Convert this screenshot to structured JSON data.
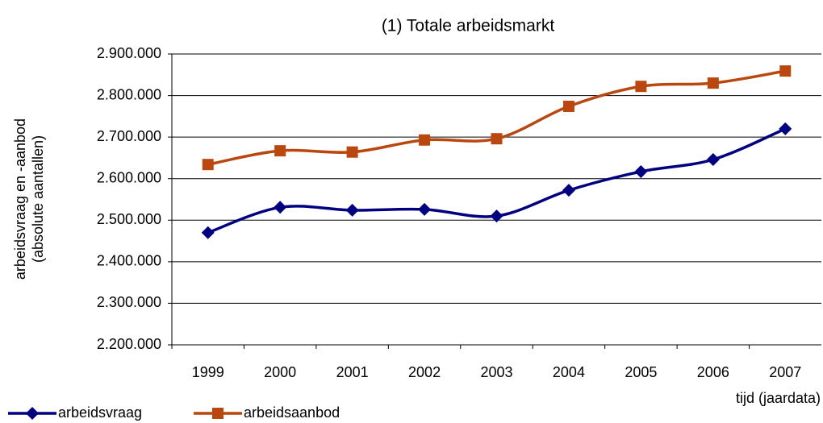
{
  "chart_data": {
    "type": "line",
    "title": "(1) Totale arbeidsmarkt",
    "ylabel": [
      "arbeidsvraag en -aanbod",
      "(absolute aantallen)"
    ],
    "xlabel": "tijd (jaardata)",
    "categories": [
      "1999",
      "2000",
      "2001",
      "2002",
      "2003",
      "2004",
      "2005",
      "2006",
      "2007"
    ],
    "series": [
      {
        "name": "arbeidsvraag",
        "color": "#000080",
        "marker": "diamond",
        "values": [
          2470000,
          2531000,
          2524000,
          2526000,
          2510000,
          2572000,
          2617000,
          2646000,
          2720000
        ]
      },
      {
        "name": "arbeidsaanbod",
        "color": "#b9470f",
        "marker": "square",
        "values": [
          2634000,
          2667000,
          2664000,
          2693000,
          2696000,
          2774000,
          2822000,
          2830000,
          2859000
        ]
      }
    ],
    "ylim": [
      2200000,
      2900000
    ],
    "yticks": [
      {
        "value": 2200000,
        "label": "2.200.000"
      },
      {
        "value": 2300000,
        "label": "2.300.000"
      },
      {
        "value": 2400000,
        "label": "2.400.000"
      },
      {
        "value": 2500000,
        "label": "2.500.000"
      },
      {
        "value": 2600000,
        "label": "2.600.000"
      },
      {
        "value": 2700000,
        "label": "2.700.000"
      },
      {
        "value": 2800000,
        "label": "2.800.000"
      },
      {
        "value": 2900000,
        "label": "2.900.000"
      }
    ],
    "grid": true,
    "legend": "bottom-left"
  }
}
